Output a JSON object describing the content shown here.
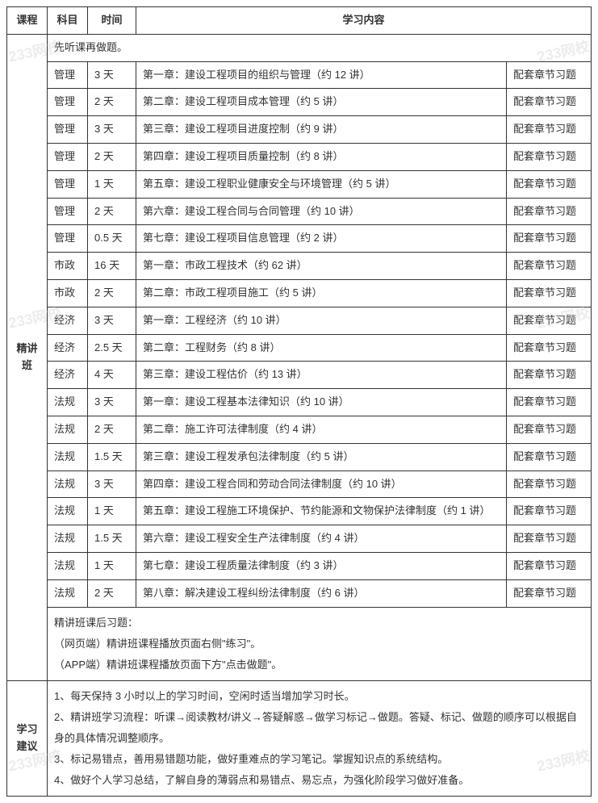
{
  "headers": {
    "course": "课程",
    "subject": "科目",
    "time": "时间",
    "content": "学习内容"
  },
  "course_name": "精讲班",
  "intro_note": "先听课再做题。",
  "rows": [
    {
      "subject": "管理",
      "time": "3 天",
      "content": "第一章：建设工程项目的组织与管理（约 12 讲）",
      "note": "配套章节习题"
    },
    {
      "subject": "管理",
      "time": "2 天",
      "content": "第二章：建设工程项目成本管理（约 5 讲）",
      "note": "配套章节习题"
    },
    {
      "subject": "管理",
      "time": "3 天",
      "content": "第三章：建设工程项目进度控制（约 9 讲）",
      "note": "配套章节习题"
    },
    {
      "subject": "管理",
      "time": "2 天",
      "content": "第四章：建设工程项目质量控制（约 8 讲）",
      "note": "配套章节习题"
    },
    {
      "subject": "管理",
      "time": "1 天",
      "content": "第五章：建设工程职业健康安全与环境管理（约 5 讲）",
      "note": "配套章节习题"
    },
    {
      "subject": "管理",
      "time": "2 天",
      "content": "第六章：建设工程合同与合同管理（约 10 讲）",
      "note": "配套章节习题"
    },
    {
      "subject": "管理",
      "time": "0.5 天",
      "content": "第七章：建设工程项目信息管理（约 2 讲）",
      "note": "配套章节习题"
    },
    {
      "subject": "市政",
      "time": "16 天",
      "content": "第一章：市政工程技术（约 62 讲）",
      "note": "配套章节习题"
    },
    {
      "subject": "市政",
      "time": "2 天",
      "content": "第二章：市政工程项目施工（约 5 讲）",
      "note": "配套章节习题"
    },
    {
      "subject": "经济",
      "time": "3 天",
      "content": "第一章：工程经济（约 10 讲）",
      "note": "配套章节习题"
    },
    {
      "subject": "经济",
      "time": "2.5 天",
      "content": "第二章：工程财务（约 8 讲）",
      "note": "配套章节习题"
    },
    {
      "subject": "经济",
      "time": "4 天",
      "content": "第三章：建设工程估价（约 13 讲）",
      "note": "配套章节习题"
    },
    {
      "subject": "法规",
      "time": "3 天",
      "content": "第一章：建设工程基本法律知识（约 10 讲）",
      "note": "配套章节习题"
    },
    {
      "subject": "法规",
      "time": "2 天",
      "content": "第二章：施工许可法律制度（约 4 讲）",
      "note": "配套章节习题"
    },
    {
      "subject": "法规",
      "time": "1.5 天",
      "content": "第三章：建设工程发承包法律制度（约 5 讲）",
      "note": "配套章节习题"
    },
    {
      "subject": "法规",
      "time": "3 天",
      "content": "第四章：建设工程合同和劳动合同法律制度（约 10 讲）",
      "note": "配套章节习题"
    },
    {
      "subject": "法规",
      "time": "1 天",
      "content": "第五章：建设工程施工环境保护、节约能源和文物保护法律制度（约 1 讲）",
      "note": "配套章节习题"
    },
    {
      "subject": "法规",
      "time": "1.5 天",
      "content": "第六章：建设工程安全生产法律制度（约 4 讲）",
      "note": "配套章节习题"
    },
    {
      "subject": "法规",
      "time": "1 天",
      "content": "第七章：建设工程质量法律制度（约 3 讲）",
      "note": "配套章节习题"
    },
    {
      "subject": "法规",
      "time": "2 天",
      "content": "第八章：解决建设工程纠纷法律制度（约 6 讲）",
      "note": "配套章节习题"
    }
  ],
  "after_note": {
    "line1": "精讲班课后习题：",
    "line2": "（网页端）精讲班课程播放页面右侧\"练习\"。",
    "line3": "（APP端）精讲班课程播放页面下方\"点击做题\"。"
  },
  "advice_label": "学习建议",
  "advice": {
    "line1": "1、每天保持 3 小时以上的学习时间，空闲时适当增加学习时长。",
    "line2": "2、精讲班学习流程：听课→阅读教材/讲义→答疑解惑→做学习标记→做题。答疑、标记、做题的顺序可以根据自身的具体情况调整顺序。",
    "line3": "3、标记易错点，善用易错题功能，做好重难点的学习笔记。掌握知识点的系统结构。",
    "line4": "4、做好个人学习总结，了解自身的薄弱点和易错点、易忘点，为强化阶段学习做好准备。"
  },
  "watermark_text": "233网校"
}
